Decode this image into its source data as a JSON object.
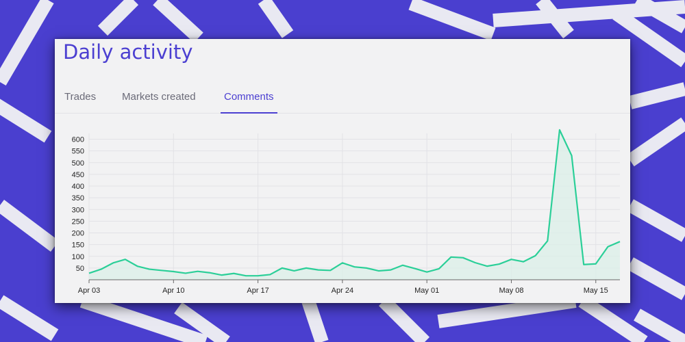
{
  "colors": {
    "brand": "#4b3fd1",
    "background": "#4a3fcf",
    "card": "#f2f2f3",
    "line": "#2bcf98",
    "fill": "#dcefe9"
  },
  "header": {
    "title": "Daily activity"
  },
  "tabs": [
    {
      "label": "Trades",
      "active": false
    },
    {
      "label": "Markets created",
      "active": false
    },
    {
      "label": "Comments",
      "active": true
    }
  ],
  "chart_data": {
    "type": "area",
    "title": "",
    "xlabel": "",
    "ylabel": "",
    "ylim": [
      0,
      625
    ],
    "yticks": [
      50,
      100,
      150,
      200,
      250,
      300,
      350,
      400,
      450,
      500,
      550,
      600
    ],
    "xtick_labels": [
      "Apr 03",
      "Apr 10",
      "Apr 17",
      "Apr 24",
      "May 01",
      "May 08",
      "May 15"
    ],
    "xtick_indices": [
      0,
      7,
      14,
      21,
      28,
      35,
      42
    ],
    "grid": true,
    "x": [
      "Apr 03",
      "Apr 04",
      "Apr 05",
      "Apr 06",
      "Apr 07",
      "Apr 08",
      "Apr 09",
      "Apr 10",
      "Apr 11",
      "Apr 12",
      "Apr 13",
      "Apr 14",
      "Apr 15",
      "Apr 16",
      "Apr 17",
      "Apr 18",
      "Apr 19",
      "Apr 20",
      "Apr 21",
      "Apr 22",
      "Apr 23",
      "Apr 24",
      "Apr 25",
      "Apr 26",
      "Apr 27",
      "Apr 28",
      "Apr 29",
      "Apr 30",
      "May 01",
      "May 02",
      "May 03",
      "May 04",
      "May 05",
      "May 06",
      "May 07",
      "May 08",
      "May 09",
      "May 10",
      "May 11",
      "May 12",
      "May 13",
      "May 14",
      "May 15",
      "May 16",
      "May 17"
    ],
    "values": [
      28,
      45,
      72,
      87,
      58,
      45,
      40,
      35,
      28,
      36,
      30,
      20,
      27,
      17,
      17,
      22,
      50,
      38,
      50,
      42,
      40,
      72,
      55,
      50,
      38,
      42,
      62,
      48,
      33,
      47,
      97,
      94,
      73,
      58,
      67,
      87,
      77,
      103,
      166,
      640,
      530,
      65,
      68,
      141,
      163
    ]
  }
}
